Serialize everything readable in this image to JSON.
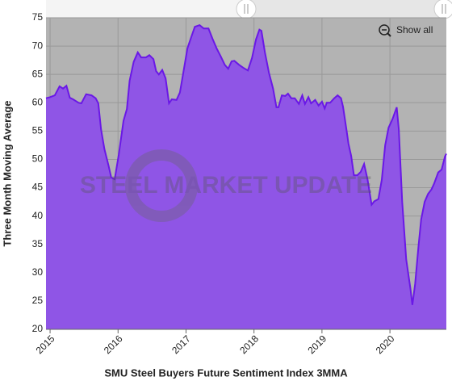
{
  "chart_data": {
    "type": "area",
    "x_label": "SMU Steel Buyers Future Sentiment Index 3MMA",
    "y_label": "Three Month Moving Average",
    "watermark": "STEEL MARKET UPDATE",
    "show_all_label": "Show all",
    "xlim": [
      2014.94,
      2020.83
    ],
    "xticks": [
      2015,
      2016,
      2017,
      2018,
      2019,
      2020
    ],
    "ylim": [
      20,
      75
    ],
    "yticks": [
      20,
      25,
      30,
      35,
      40,
      45,
      50,
      55,
      60,
      65,
      70,
      75
    ],
    "grid": true,
    "x": [
      2014.94,
      2015.0,
      2015.07,
      2015.14,
      2015.19,
      2015.24,
      2015.29,
      2015.34,
      2015.42,
      2015.46,
      2015.53,
      2015.61,
      2015.67,
      2015.71,
      2015.75,
      2015.8,
      2015.86,
      2015.9,
      2015.95,
      2016.01,
      2016.08,
      2016.13,
      2016.17,
      2016.23,
      2016.29,
      2016.34,
      2016.41,
      2016.46,
      2016.52,
      2016.56,
      2016.6,
      2016.65,
      2016.7,
      2016.75,
      2016.79,
      2016.86,
      2016.91,
      2016.96,
      2017.02,
      2017.08,
      2017.13,
      2017.2,
      2017.26,
      2017.33,
      2017.39,
      2017.45,
      2017.51,
      2017.57,
      2017.62,
      2017.67,
      2017.71,
      2017.78,
      2017.84,
      2017.91,
      2017.97,
      2018.03,
      2018.08,
      2018.11,
      2018.16,
      2018.22,
      2018.28,
      2018.33,
      2018.36,
      2018.41,
      2018.46,
      2018.5,
      2018.55,
      2018.6,
      2018.66,
      2018.71,
      2018.75,
      2018.8,
      2018.84,
      2018.9,
      2018.95,
      2019.0,
      2019.04,
      2019.07,
      2019.12,
      2019.18,
      2019.23,
      2019.28,
      2019.31,
      2019.36,
      2019.39,
      2019.43,
      2019.47,
      2019.52,
      2019.57,
      2019.62,
      2019.67,
      2019.73,
      2019.77,
      2019.83,
      2019.88,
      2019.93,
      2019.98,
      2020.04,
      2020.1,
      2020.13,
      2020.18,
      2020.24,
      2020.3,
      2020.33,
      2020.37,
      2020.42,
      2020.46,
      2020.51,
      2020.56,
      2020.61,
      2020.65,
      2020.71,
      2020.76,
      2020.81,
      2020.83
    ],
    "series": [
      {
        "color": "#8f55e6",
        "line_color": "#6a18e6",
        "values": [
          60.8,
          61.0,
          61.3,
          62.9,
          62.5,
          63.0,
          60.9,
          60.6,
          60.0,
          59.9,
          61.5,
          61.3,
          60.8,
          59.9,
          55.3,
          51.8,
          48.9,
          46.8,
          46.5,
          50.8,
          56.8,
          58.9,
          63.9,
          67.2,
          68.9,
          68.0,
          68.0,
          68.4,
          67.7,
          65.6,
          65.0,
          65.8,
          64.3,
          59.9,
          60.6,
          60.5,
          61.8,
          65.3,
          69.6,
          71.7,
          73.4,
          73.7,
          73.1,
          73.1,
          71.3,
          69.6,
          68.2,
          66.7,
          66.0,
          67.3,
          67.4,
          66.7,
          66.2,
          65.7,
          67.9,
          71.2,
          72.9,
          72.7,
          68.9,
          65.3,
          62.5,
          59.2,
          59.2,
          61.3,
          61.2,
          61.6,
          60.8,
          60.8,
          59.8,
          61.3,
          59.8,
          61.0,
          59.9,
          60.5,
          59.5,
          60.2,
          59.0,
          60.0,
          60.0,
          60.8,
          61.3,
          60.8,
          59.3,
          55.3,
          52.8,
          50.6,
          47.2,
          47.2,
          47.8,
          49.2,
          46.5,
          42.0,
          42.6,
          43.0,
          46.4,
          52.5,
          55.6,
          57.2,
          59.2,
          55.3,
          42.5,
          32.3,
          27.3,
          24.3,
          28.0,
          34.7,
          39.4,
          42.5,
          43.9,
          44.7,
          45.7,
          47.7,
          48.2,
          50.5,
          51.0
        ]
      }
    ]
  }
}
